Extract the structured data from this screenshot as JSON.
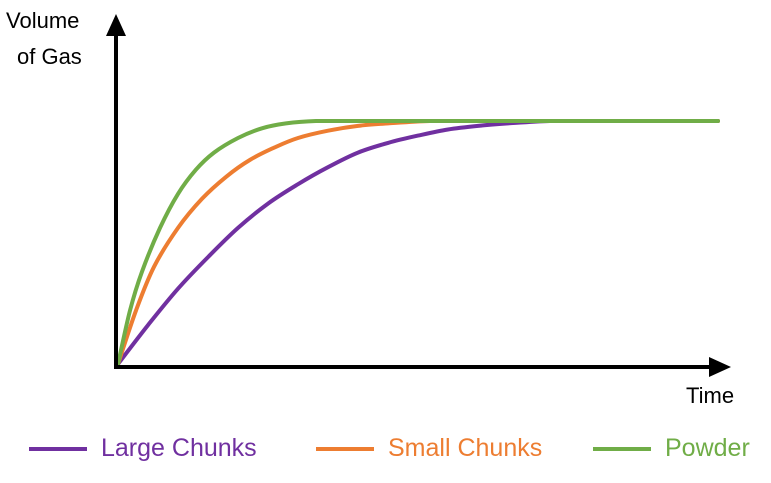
{
  "chart_data": {
    "type": "line",
    "title": "",
    "ylabel_lines": [
      "Volume",
      "of Gas"
    ],
    "xlabel": "Time",
    "xlim": [
      0,
      1
    ],
    "ylim": [
      0,
      1
    ],
    "axis_ticks": false,
    "grid": false,
    "legend_position": "bottom",
    "series": [
      {
        "name": "Large Chunks",
        "color": "#7030A0",
        "x": [
          0,
          0.05,
          0.1,
          0.15,
          0.2,
          0.25,
          0.3,
          0.35,
          0.4,
          0.45,
          0.5,
          0.55,
          0.6,
          0.65,
          0.72,
          0.8,
          0.9,
          1.0
        ],
        "y": [
          0,
          0.16,
          0.31,
          0.44,
          0.56,
          0.66,
          0.74,
          0.81,
          0.87,
          0.91,
          0.94,
          0.965,
          0.98,
          0.99,
          1.0,
          1.0,
          1.0,
          1.0
        ]
      },
      {
        "name": "Small Chunks",
        "color": "#ED7D31",
        "x": [
          0,
          0.03,
          0.06,
          0.1,
          0.14,
          0.18,
          0.22,
          0.26,
          0.3,
          0.35,
          0.4,
          0.45,
          0.52,
          0.6,
          0.7,
          0.8,
          0.9,
          1.0
        ],
        "y": [
          0,
          0.22,
          0.4,
          0.56,
          0.68,
          0.77,
          0.84,
          0.89,
          0.93,
          0.96,
          0.98,
          0.99,
          1.0,
          1.0,
          1.0,
          1.0,
          1.0,
          1.0
        ]
      },
      {
        "name": "Powder",
        "color": "#70AD47",
        "x": [
          0,
          0.02,
          0.04,
          0.07,
          0.1,
          0.13,
          0.16,
          0.2,
          0.24,
          0.28,
          0.33,
          0.4,
          0.5,
          0.6,
          0.7,
          0.8,
          0.9,
          1.0
        ],
        "y": [
          0,
          0.22,
          0.38,
          0.56,
          0.7,
          0.8,
          0.87,
          0.93,
          0.97,
          0.99,
          1.0,
          1.0,
          1.0,
          1.0,
          1.0,
          1.0,
          1.0,
          1.0
        ]
      }
    ]
  }
}
